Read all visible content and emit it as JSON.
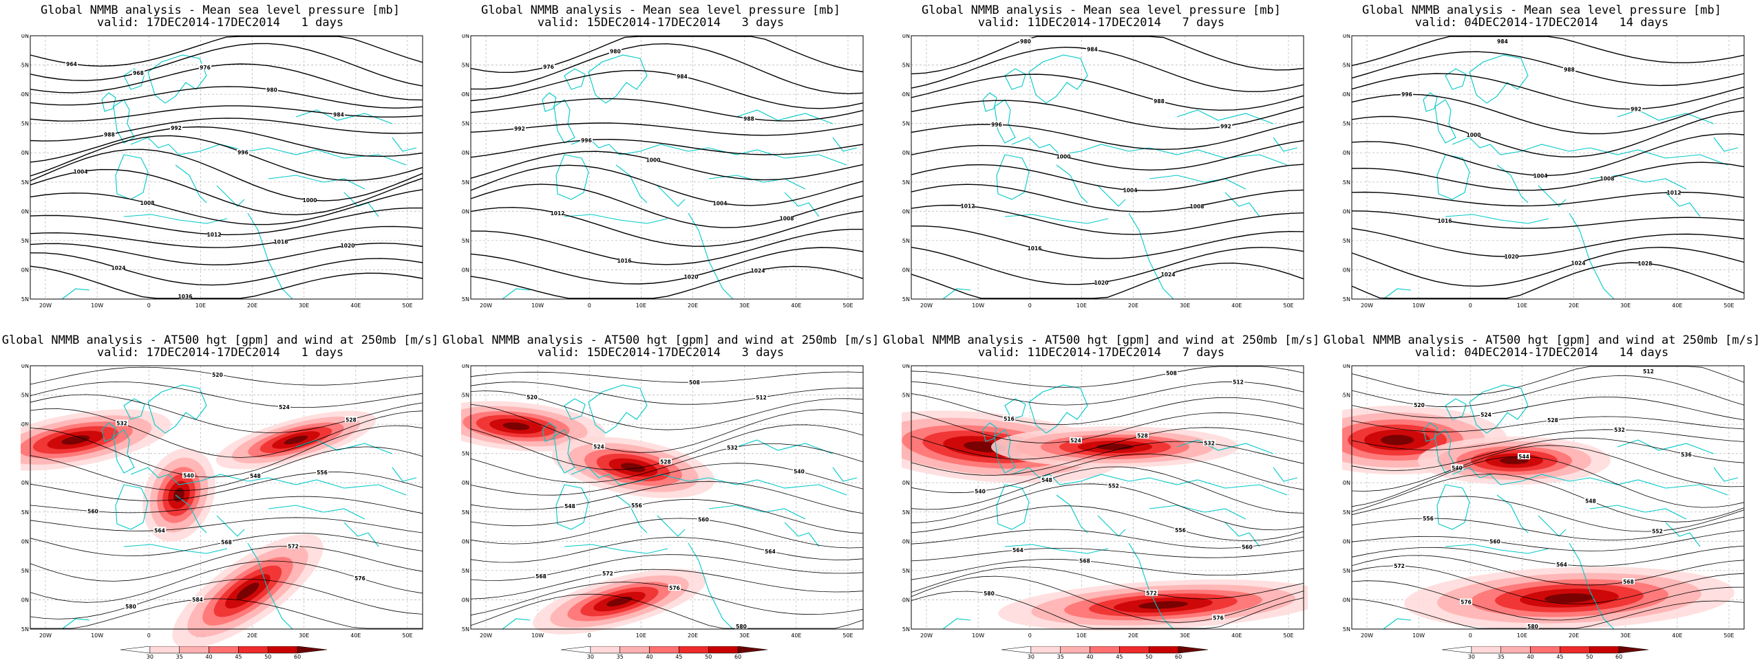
{
  "panels": [
    {
      "title": "Global NMMB analysis - Mean sea level pressure [mb]",
      "valid": "valid: 17DEC2014-17DEC2014   1 days",
      "isobar_labels": [
        "964",
        "968",
        "976",
        "980",
        "984",
        "988",
        "992",
        "996",
        "1000",
        "1004",
        "1008",
        "1012",
        "1016",
        "1020",
        "1024",
        "1036"
      ]
    },
    {
      "title": "Global NMMB analysis - Mean sea level pressure [mb]",
      "valid": "valid: 15DEC2014-17DEC2014   3 days",
      "isobar_labels": [
        "976",
        "980",
        "984",
        "988",
        "992",
        "996",
        "1000",
        "1004",
        "1008",
        "1012",
        "1016",
        "1020",
        "1024"
      ]
    },
    {
      "title": "Global NMMB analysis - Mean sea level pressure [mb]",
      "valid": "valid: 11DEC2014-17DEC2014   7 days",
      "isobar_labels": [
        "980",
        "984",
        "988",
        "992",
        "996",
        "1000",
        "1004",
        "1008",
        "1012",
        "1016",
        "1020",
        "1024"
      ]
    },
    {
      "title": "Global NMMB analysis - Mean sea level pressure [mb]",
      "valid": "valid: 04DEC2014-17DEC2014   14 days",
      "isobar_labels": [
        "984",
        "988",
        "992",
        "996",
        "1000",
        "1004",
        "1008",
        "1012",
        "1016",
        "1020",
        "1024",
        "1028"
      ]
    },
    {
      "title": "Global NMMB analysis - AT500 hgt [gpm] and wind at 250mb [m/s]",
      "valid": "valid: 17DEC2014-17DEC2014   1 days",
      "height_labels": [
        "520",
        "524",
        "528",
        "532",
        "540",
        "548",
        "556",
        "560",
        "564",
        "568",
        "572",
        "576",
        "580",
        "584"
      ]
    },
    {
      "title": "Global NMMB analysis - AT500 hgt [gpm] and wind at 250mb [m/s]",
      "valid": "valid: 15DEC2014-17DEC2014   3 days",
      "height_labels": [
        "508",
        "512",
        "520",
        "524",
        "528",
        "532",
        "540",
        "548",
        "556",
        "560",
        "564",
        "568",
        "572",
        "576",
        "580"
      ]
    },
    {
      "title": "Global NMMB analysis - AT500 hgt [gpm] and wind at 250mb [m/s]",
      "valid": "valid: 11DEC2014-17DEC2014   7 days",
      "height_labels": [
        "508",
        "512",
        "516",
        "524",
        "528",
        "532",
        "540",
        "548",
        "552",
        "556",
        "560",
        "564",
        "568",
        "572",
        "576",
        "580"
      ]
    },
    {
      "title": "Global NMMB analysis - AT500 hgt [gpm] and wind at 250mb [m/s]",
      "valid": "valid: 04DEC2014-17DEC2014   14 days",
      "height_labels": [
        "512",
        "520",
        "524",
        "528",
        "532",
        "536",
        "540",
        "544",
        "548",
        "552",
        "556",
        "560",
        "564",
        "568",
        "572",
        "576",
        "580"
      ]
    }
  ],
  "map_axes": {
    "lat_labels": [
      "70N",
      "65N",
      "60N",
      "55N",
      "50N",
      "45N",
      "40N",
      "35N",
      "30N",
      "25N"
    ],
    "lon_labels": [
      "20W",
      "10W",
      "0",
      "10E",
      "20E",
      "30E",
      "40E",
      "50E"
    ]
  },
  "colorbar": {
    "ticks": [
      "30",
      "35",
      "40",
      "45",
      "50",
      "60"
    ],
    "colors": [
      "#ffffff",
      "#ffd9d9",
      "#ffb0b0",
      "#ff7070",
      "#ee2a2a",
      "#c80000",
      "#6a0000"
    ]
  },
  "colors": {
    "coast": "#00c8c8",
    "isoline": "#000000",
    "grid": "#bbbbbb"
  }
}
